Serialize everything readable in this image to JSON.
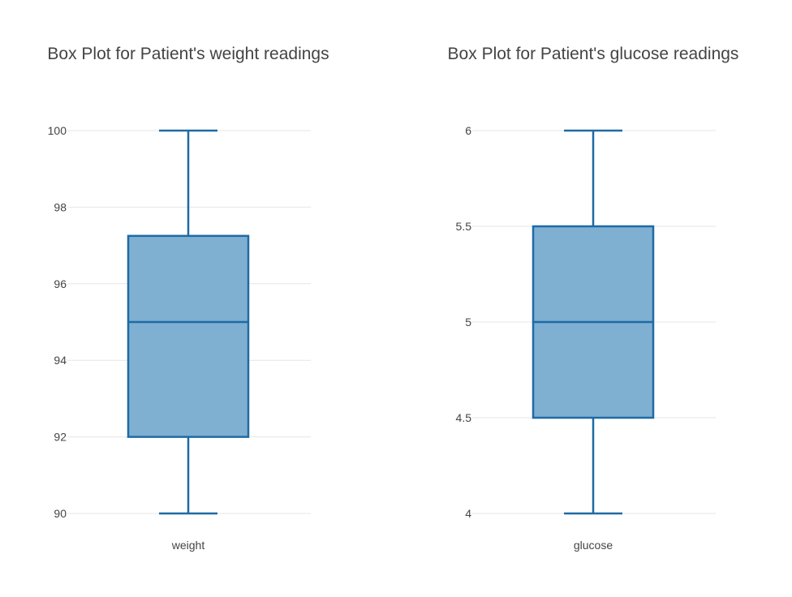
{
  "chart_data": [
    {
      "type": "box",
      "title": "Box Plot for Patient's weight readings",
      "xlabel": "",
      "ylabel": "",
      "ylim": [
        90,
        100
      ],
      "yticks": [
        90,
        92,
        94,
        96,
        98,
        100
      ],
      "ytick_labels": [
        "90",
        "92",
        "94",
        "96",
        "98",
        "100"
      ],
      "grid": true,
      "categories": [
        "weight"
      ],
      "series": [
        {
          "category": "weight",
          "min": 90,
          "q1": 92,
          "median": 95,
          "q3": 97.25,
          "max": 100
        }
      ],
      "colors": {
        "line": "#1f6aa5",
        "fill": "#7fb0d2"
      }
    },
    {
      "type": "box",
      "title": "Box Plot for Patient's glucose readings",
      "xlabel": "",
      "ylabel": "",
      "ylim": [
        4,
        6
      ],
      "yticks": [
        4,
        4.5,
        5,
        5.5,
        6
      ],
      "ytick_labels": [
        "4",
        "4.5",
        "5",
        "5.5",
        "6"
      ],
      "grid": true,
      "categories": [
        "glucose"
      ],
      "series": [
        {
          "category": "glucose",
          "min": 4,
          "q1": 4.5,
          "median": 5,
          "q3": 5.5,
          "max": 6
        }
      ],
      "colors": {
        "line": "#1f6aa5",
        "fill": "#7fb0d2"
      }
    }
  ]
}
